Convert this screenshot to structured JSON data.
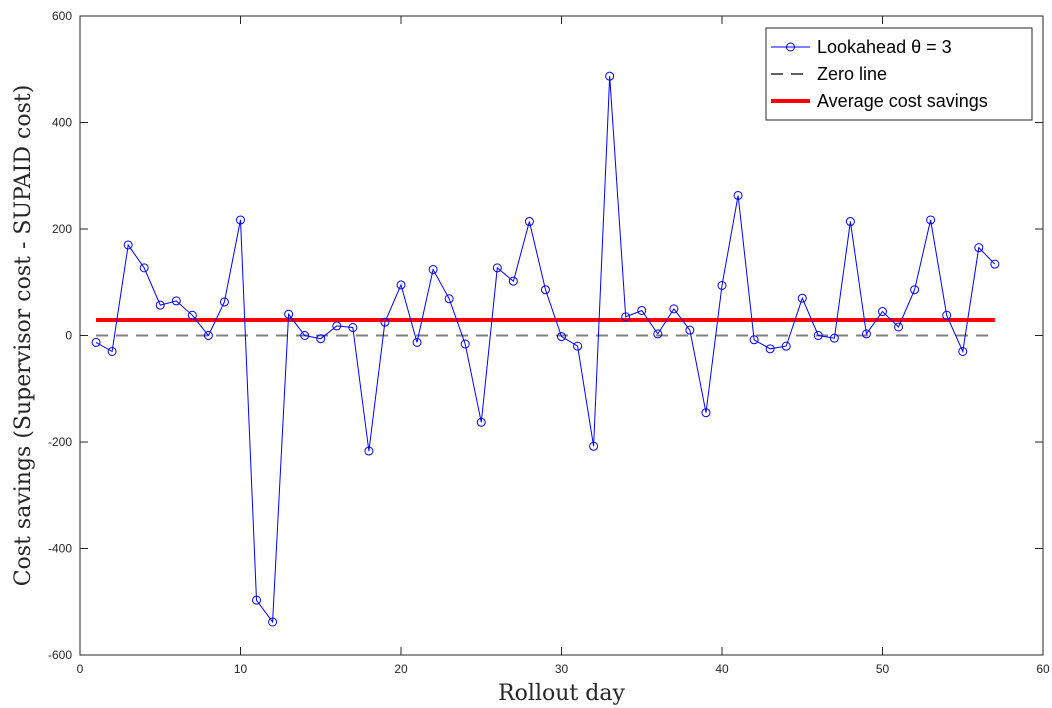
{
  "chart_data": {
    "type": "line",
    "xlabel": "Rollout day",
    "ylabel": "Cost savings (Supervisor cost - SUPAID cost)",
    "xlim": [
      0,
      60
    ],
    "ylim": [
      -600,
      600
    ],
    "xticks": [
      0,
      10,
      20,
      30,
      40,
      50,
      60
    ],
    "yticks": [
      -600,
      -400,
      -200,
      0,
      200,
      400,
      600
    ],
    "grid": false,
    "legend_position": "top-right",
    "series": [
      {
        "name": "Lookahead θ = 3",
        "color": "#0000ff",
        "marker": "circle",
        "x": [
          1,
          2,
          3,
          4,
          5,
          6,
          7,
          8,
          9,
          10,
          11,
          12,
          13,
          14,
          15,
          16,
          17,
          18,
          19,
          20,
          21,
          22,
          23,
          24,
          25,
          26,
          27,
          28,
          29,
          30,
          31,
          32,
          33,
          34,
          35,
          36,
          37,
          38,
          39,
          40,
          41,
          42,
          43,
          44,
          45,
          46,
          47,
          48,
          49,
          50,
          51,
          52,
          53,
          54,
          55,
          56,
          57
        ],
        "y": [
          -13,
          -30,
          170,
          127,
          57,
          65,
          38,
          0,
          63,
          217,
          -497,
          -538,
          40,
          0,
          -6,
          18,
          15,
          -217,
          25,
          95,
          -13,
          124,
          69,
          -16,
          -163,
          127,
          102,
          214,
          86,
          -2,
          -20,
          -208,
          487,
          35,
          47,
          3,
          50,
          10,
          -145,
          94,
          263,
          -8,
          -25,
          -20,
          70,
          0,
          -5,
          214,
          3,
          45,
          16,
          86,
          217,
          38,
          -30,
          165,
          134
        ]
      },
      {
        "name": "Zero line",
        "color": "#808080",
        "style": "dashed",
        "x": [
          1,
          57
        ],
        "y": [
          0,
          0
        ]
      },
      {
        "name": "Average cost savings",
        "color": "#ff0000",
        "style": "solid-thick",
        "x": [
          1,
          57
        ],
        "y": [
          29,
          29
        ]
      }
    ]
  }
}
